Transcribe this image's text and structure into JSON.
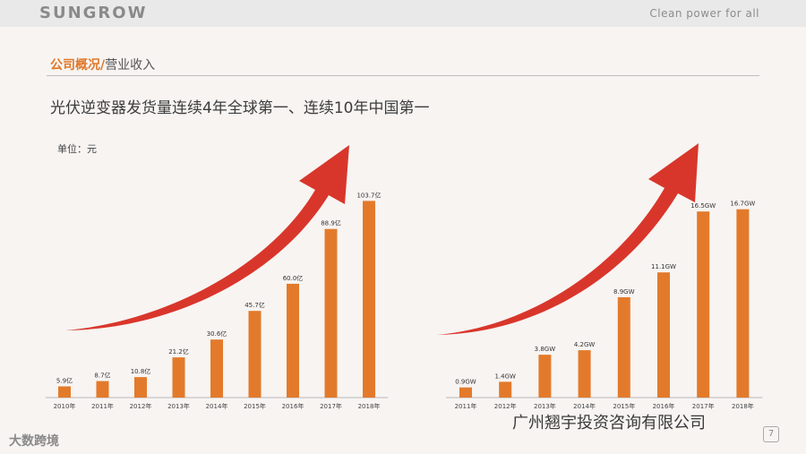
{
  "header": {
    "brand": "SUNGROW",
    "tagline": "Clean power for all"
  },
  "section": {
    "main": "公司概况",
    "separator": "/",
    "sub": "营业收入"
  },
  "headline": "光伏逆变器发货量连续4年全球第一、连续10年中国第一",
  "unit_label": "单位：元",
  "colors": {
    "bar": "#e37a2b",
    "arrow": "#d9362b",
    "accent": "#e0782a"
  },
  "chart_data": [
    {
      "type": "bar",
      "categories": [
        "2010年",
        "2011年",
        "2012年",
        "2013年",
        "2014年",
        "2015年",
        "2016年",
        "2017年",
        "2018年"
      ],
      "values": [
        5.9,
        8.7,
        10.8,
        21.2,
        30.6,
        45.7,
        60.0,
        88.9,
        103.7
      ],
      "value_labels": [
        "5.9亿",
        "8.7亿",
        "10.8亿",
        "21.2亿",
        "30.6亿",
        "45.7亿",
        "60.0亿",
        "88.9亿",
        "103.7亿"
      ],
      "ylim": [
        0,
        110
      ]
    },
    {
      "type": "bar",
      "categories": [
        "2011年",
        "2012年",
        "2013年",
        "2014年",
        "2015年",
        "2016年",
        "2017年",
        "2018年"
      ],
      "values": [
        0.9,
        1.4,
        3.8,
        4.2,
        8.9,
        11.1,
        16.5,
        16.7
      ],
      "value_labels": [
        "0.9GW",
        "1.4GW",
        "3.8GW",
        "4.2GW",
        "8.9GW",
        "11.1GW",
        "16.5GW",
        "16.7GW"
      ],
      "ylim": [
        0,
        18.5
      ]
    }
  ],
  "footer": {
    "left_watermark": "大数跨境",
    "right_watermark": "广州翘宇投资咨询有限公司",
    "page": "7"
  }
}
